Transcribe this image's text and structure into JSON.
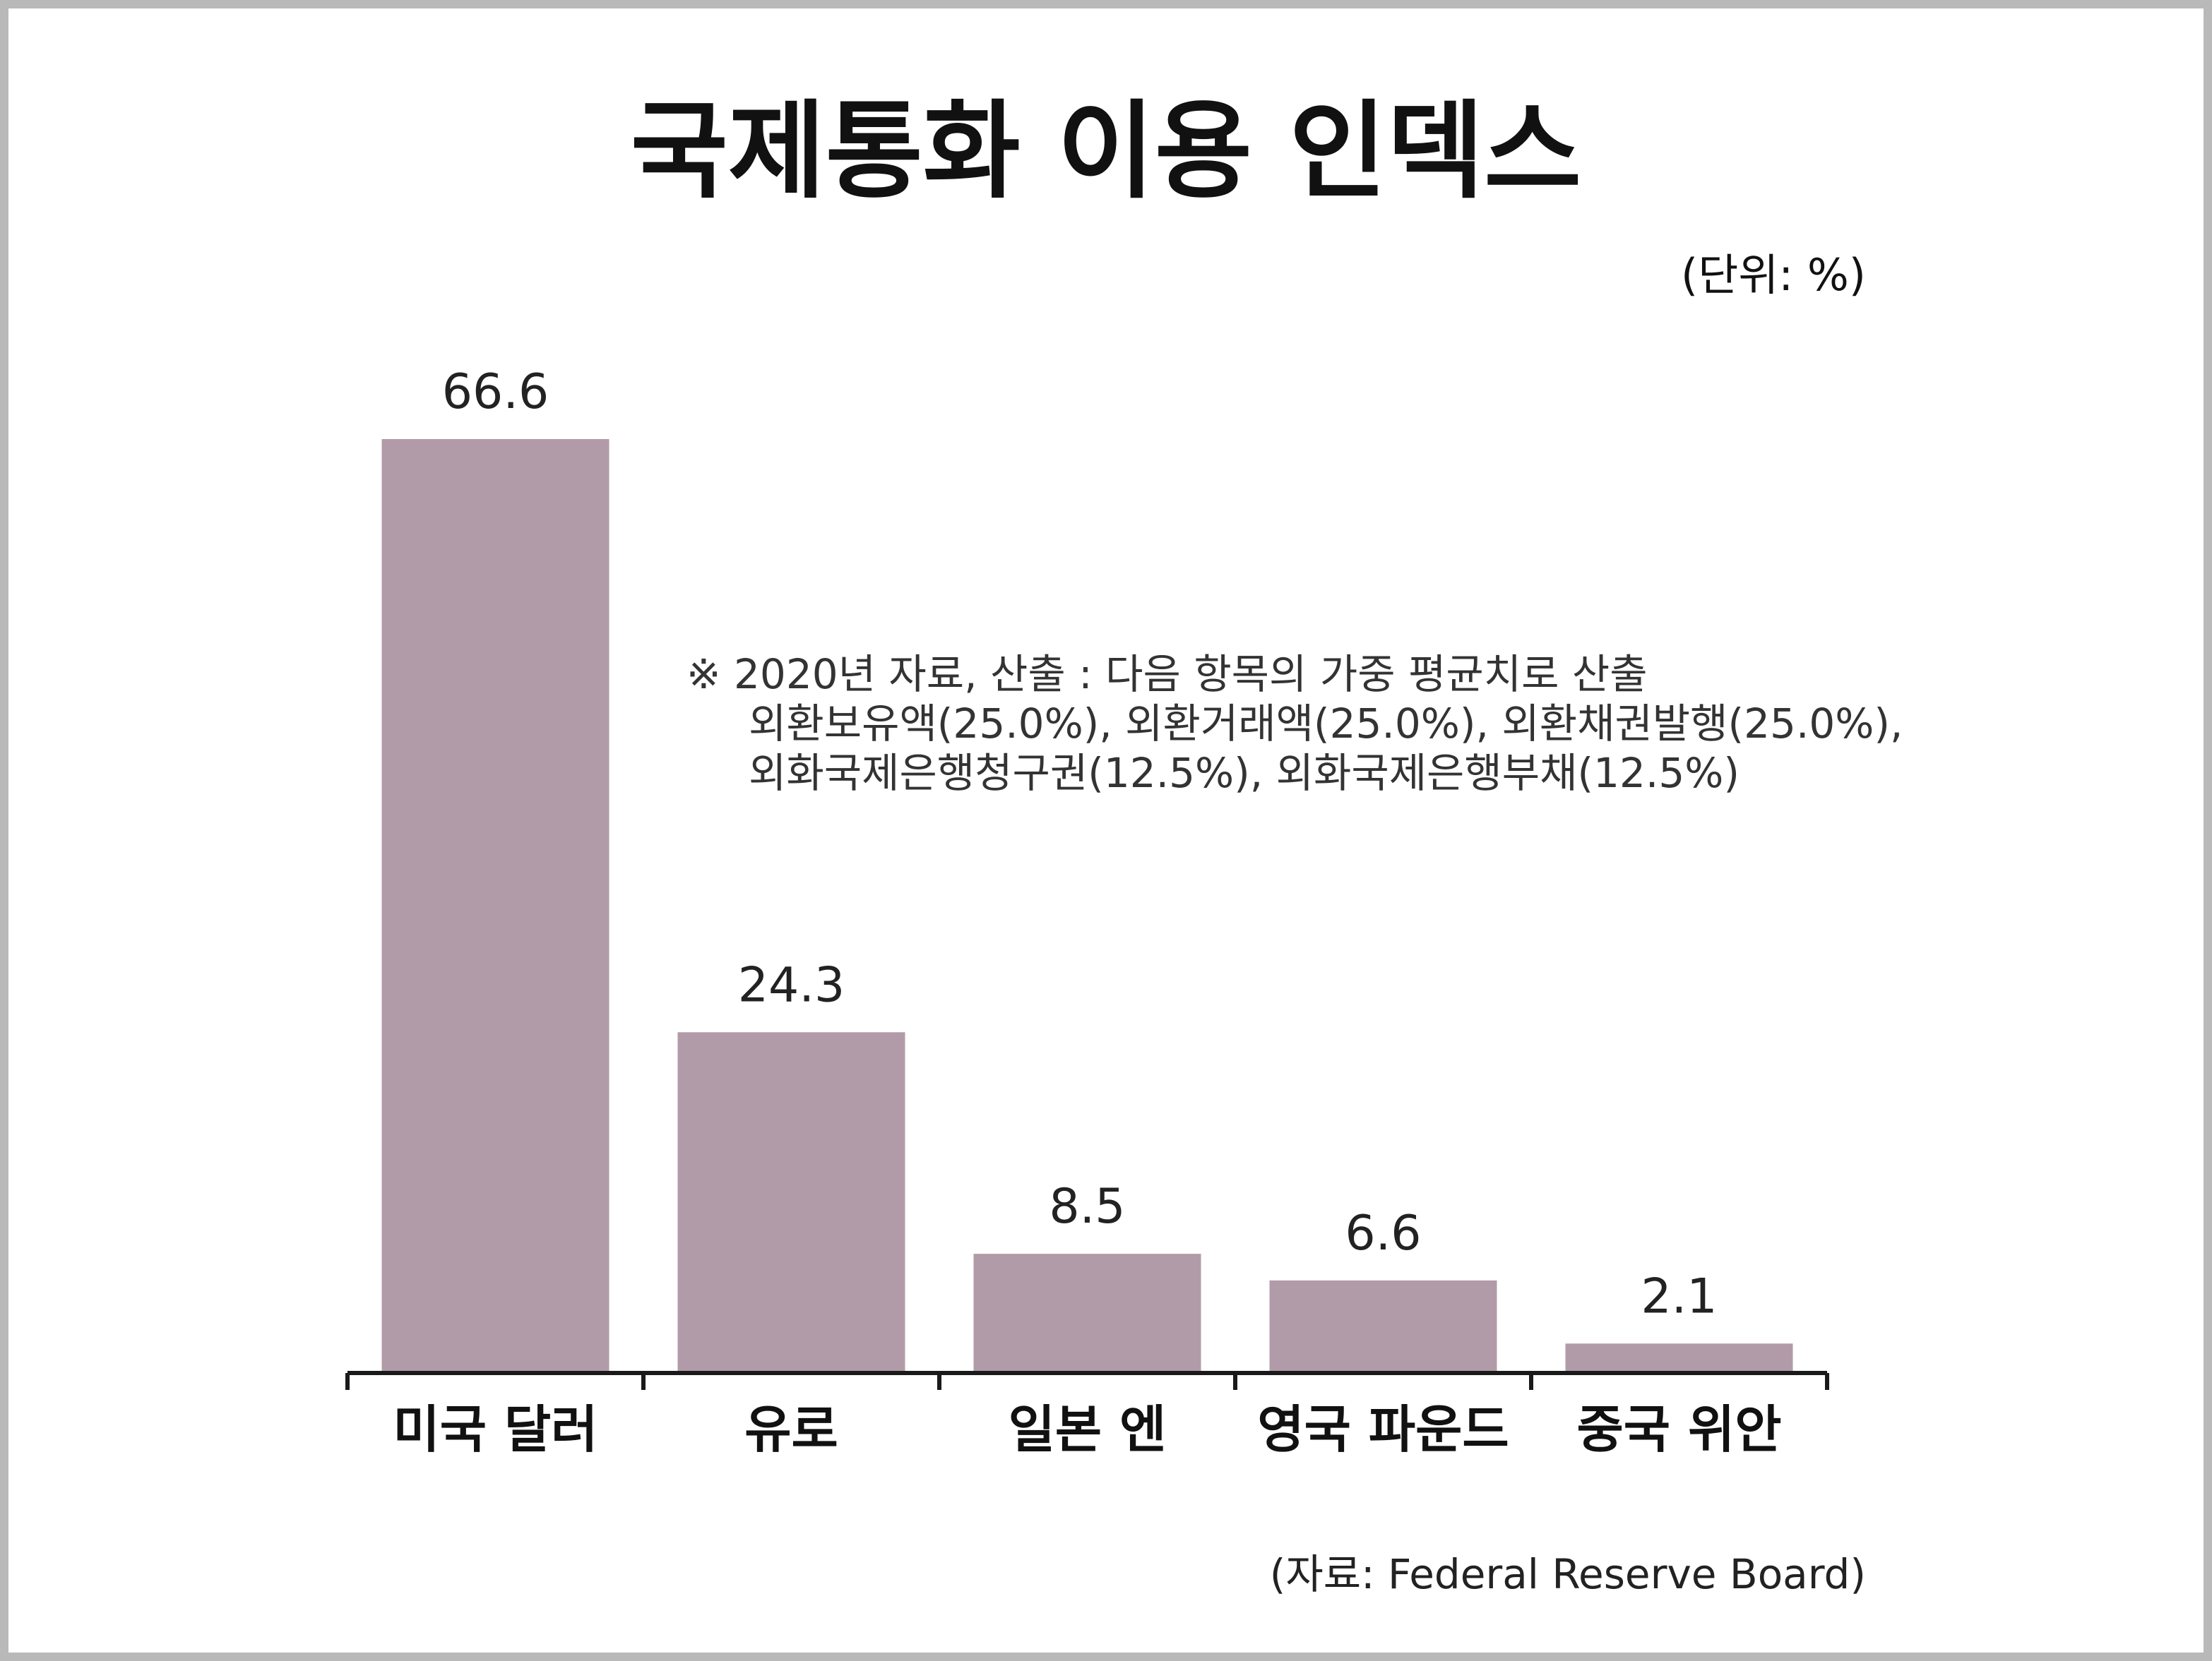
{
  "colors": {
    "bar": "#b29ba8",
    "axis": "#1a1a1a",
    "border": "#b9b9b9"
  },
  "chart_data": {
    "type": "bar",
    "title": "국제통화 이용 인덱스",
    "unit_label": "(단위: %)",
    "categories": [
      "미국 달러",
      "유로",
      "일본 엔",
      "영국 파운드",
      "중국 위안"
    ],
    "values": [
      66.6,
      24.3,
      8.5,
      6.6,
      2.1
    ],
    "value_labels": [
      "66.6",
      "24.3",
      "8.5",
      "6.6",
      "2.1"
    ],
    "ylim": [
      0,
      66.6
    ],
    "grid": false,
    "note": [
      "※ 2020년 자료, 산출 : 다음 항목의 가중 평균치로 산출",
      "외환보유액(25.0%), 외환거래액(25.0%), 외환채권발행(25.0%),",
      "외화국제은행청구권(12.5%), 외화국제은행부채(12.5%)"
    ],
    "source": "(자료: Federal Reserve Board)"
  }
}
